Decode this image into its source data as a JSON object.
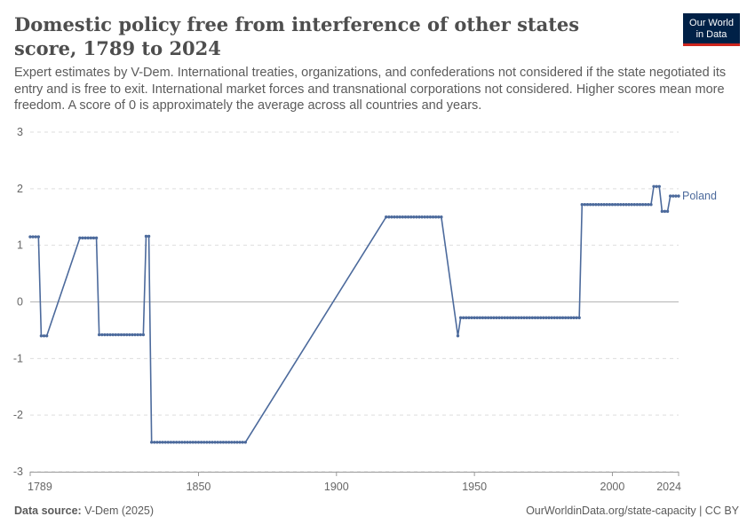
{
  "header": {
    "title": "Domestic policy free from interference of other states score, 1789 to 2024",
    "subtitle": "Expert estimates by V-Dem. International treaties, organizations, and confederations not considered if the state negotiated its entry and is free to exit. International market forces and transnational corporations not considered. Higher scores mean more freedom. A score of 0 is approximately the average across all countries and years.",
    "logo_line1": "Our World",
    "logo_line2": "in Data"
  },
  "footer": {
    "source_label": "Data source:",
    "source_value": "V-Dem (2025)",
    "url": "OurWorldinData.org/state-capacity | CC BY"
  },
  "colors": {
    "series": "#4c6a9c",
    "grid": "#dddddd",
    "zero": "#b5b5b5",
    "brand": "#002147",
    "accent": "#ce261e"
  },
  "chart_data": {
    "type": "line",
    "title": "Domestic policy free from interference of other states score, 1789 to 2024",
    "xlim": [
      1789,
      2024
    ],
    "ylim": [
      -3,
      3
    ],
    "yticks": [
      3,
      2,
      1,
      0,
      -1,
      -2,
      -3
    ],
    "xticks": [
      1789,
      1850,
      1900,
      1950,
      2000,
      2024
    ],
    "grid": true,
    "series": [
      {
        "name": "Poland",
        "color": "#4c6a9c",
        "segments": [
          [
            [
              1789,
              1.15
            ],
            [
              1790,
              1.15
            ],
            [
              1791,
              1.15
            ],
            [
              1792,
              1.15
            ],
            [
              1793,
              -0.6
            ],
            [
              1794,
              -0.6
            ],
            [
              1795,
              -0.6
            ]
          ],
          [
            [
              1807,
              1.13
            ],
            [
              1808,
              1.13
            ],
            [
              1809,
              1.13
            ],
            [
              1810,
              1.13
            ],
            [
              1811,
              1.13
            ],
            [
              1812,
              1.13
            ],
            [
              1813,
              1.13
            ],
            [
              1814,
              -0.58
            ],
            [
              1815,
              -0.58
            ],
            [
              1816,
              -0.58
            ],
            [
              1817,
              -0.58
            ],
            [
              1818,
              -0.58
            ],
            [
              1819,
              -0.58
            ],
            [
              1820,
              -0.58
            ],
            [
              1821,
              -0.58
            ],
            [
              1822,
              -0.58
            ],
            [
              1823,
              -0.58
            ],
            [
              1824,
              -0.58
            ],
            [
              1825,
              -0.58
            ],
            [
              1826,
              -0.58
            ],
            [
              1827,
              -0.58
            ],
            [
              1828,
              -0.58
            ],
            [
              1829,
              -0.58
            ],
            [
              1830,
              -0.58
            ],
            [
              1831,
              1.16
            ],
            [
              1832,
              1.16
            ],
            [
              1833,
              -2.48
            ],
            [
              1834,
              -2.48
            ],
            [
              1835,
              -2.48
            ],
            [
              1836,
              -2.48
            ],
            [
              1837,
              -2.48
            ],
            [
              1838,
              -2.48
            ],
            [
              1839,
              -2.48
            ],
            [
              1840,
              -2.48
            ],
            [
              1841,
              -2.48
            ],
            [
              1842,
              -2.48
            ],
            [
              1843,
              -2.48
            ],
            [
              1844,
              -2.48
            ],
            [
              1845,
              -2.48
            ],
            [
              1846,
              -2.48
            ],
            [
              1847,
              -2.48
            ],
            [
              1848,
              -2.48
            ],
            [
              1849,
              -2.48
            ],
            [
              1850,
              -2.48
            ],
            [
              1851,
              -2.48
            ],
            [
              1852,
              -2.48
            ],
            [
              1853,
              -2.48
            ],
            [
              1854,
              -2.48
            ],
            [
              1855,
              -2.48
            ],
            [
              1856,
              -2.48
            ],
            [
              1857,
              -2.48
            ],
            [
              1858,
              -2.48
            ],
            [
              1859,
              -2.48
            ],
            [
              1860,
              -2.48
            ],
            [
              1861,
              -2.48
            ],
            [
              1862,
              -2.48
            ],
            [
              1863,
              -2.48
            ],
            [
              1864,
              -2.48
            ],
            [
              1865,
              -2.48
            ],
            [
              1866,
              -2.48
            ],
            [
              1867,
              -2.48
            ]
          ],
          [
            [
              1918,
              1.5
            ],
            [
              1919,
              1.5
            ],
            [
              1920,
              1.5
            ],
            [
              1921,
              1.5
            ],
            [
              1922,
              1.5
            ],
            [
              1923,
              1.5
            ],
            [
              1924,
              1.5
            ],
            [
              1925,
              1.5
            ],
            [
              1926,
              1.5
            ],
            [
              1927,
              1.5
            ],
            [
              1928,
              1.5
            ],
            [
              1929,
              1.5
            ],
            [
              1930,
              1.5
            ],
            [
              1931,
              1.5
            ],
            [
              1932,
              1.5
            ],
            [
              1933,
              1.5
            ],
            [
              1934,
              1.5
            ],
            [
              1935,
              1.5
            ],
            [
              1936,
              1.5
            ],
            [
              1937,
              1.5
            ],
            [
              1938,
              1.5
            ]
          ],
          [
            [
              1944,
              -0.6
            ],
            [
              1945,
              -0.28
            ],
            [
              1946,
              -0.28
            ],
            [
              1947,
              -0.28
            ],
            [
              1948,
              -0.28
            ],
            [
              1949,
              -0.28
            ],
            [
              1950,
              -0.28
            ],
            [
              1951,
              -0.28
            ],
            [
              1952,
              -0.28
            ],
            [
              1953,
              -0.28
            ],
            [
              1954,
              -0.28
            ],
            [
              1955,
              -0.28
            ],
            [
              1956,
              -0.28
            ],
            [
              1957,
              -0.28
            ],
            [
              1958,
              -0.28
            ],
            [
              1959,
              -0.28
            ],
            [
              1960,
              -0.28
            ],
            [
              1961,
              -0.28
            ],
            [
              1962,
              -0.28
            ],
            [
              1963,
              -0.28
            ],
            [
              1964,
              -0.28
            ],
            [
              1965,
              -0.28
            ],
            [
              1966,
              -0.28
            ],
            [
              1967,
              -0.28
            ],
            [
              1968,
              -0.28
            ],
            [
              1969,
              -0.28
            ],
            [
              1970,
              -0.28
            ],
            [
              1971,
              -0.28
            ],
            [
              1972,
              -0.28
            ],
            [
              1973,
              -0.28
            ],
            [
              1974,
              -0.28
            ],
            [
              1975,
              -0.28
            ],
            [
              1976,
              -0.28
            ],
            [
              1977,
              -0.28
            ],
            [
              1978,
              -0.28
            ],
            [
              1979,
              -0.28
            ],
            [
              1980,
              -0.28
            ],
            [
              1981,
              -0.28
            ],
            [
              1982,
              -0.28
            ],
            [
              1983,
              -0.28
            ],
            [
              1984,
              -0.28
            ],
            [
              1985,
              -0.28
            ],
            [
              1986,
              -0.28
            ],
            [
              1987,
              -0.28
            ],
            [
              1988,
              -0.28
            ],
            [
              1989,
              1.72
            ],
            [
              1990,
              1.72
            ],
            [
              1991,
              1.72
            ],
            [
              1992,
              1.72
            ],
            [
              1993,
              1.72
            ],
            [
              1994,
              1.72
            ],
            [
              1995,
              1.72
            ],
            [
              1996,
              1.72
            ],
            [
              1997,
              1.72
            ],
            [
              1998,
              1.72
            ],
            [
              1999,
              1.72
            ],
            [
              2000,
              1.72
            ],
            [
              2001,
              1.72
            ],
            [
              2002,
              1.72
            ],
            [
              2003,
              1.72
            ],
            [
              2004,
              1.72
            ],
            [
              2005,
              1.72
            ],
            [
              2006,
              1.72
            ],
            [
              2007,
              1.72
            ],
            [
              2008,
              1.72
            ],
            [
              2009,
              1.72
            ],
            [
              2010,
              1.72
            ],
            [
              2011,
              1.72
            ],
            [
              2012,
              1.72
            ],
            [
              2013,
              1.72
            ],
            [
              2014,
              1.72
            ],
            [
              2015,
              2.04
            ],
            [
              2016,
              2.04
            ],
            [
              2017,
              2.04
            ],
            [
              2018,
              1.6
            ],
            [
              2019,
              1.6
            ],
            [
              2020,
              1.6
            ],
            [
              2021,
              1.87
            ],
            [
              2022,
              1.87
            ],
            [
              2023,
              1.87
            ],
            [
              2024,
              1.87
            ]
          ]
        ]
      }
    ]
  }
}
